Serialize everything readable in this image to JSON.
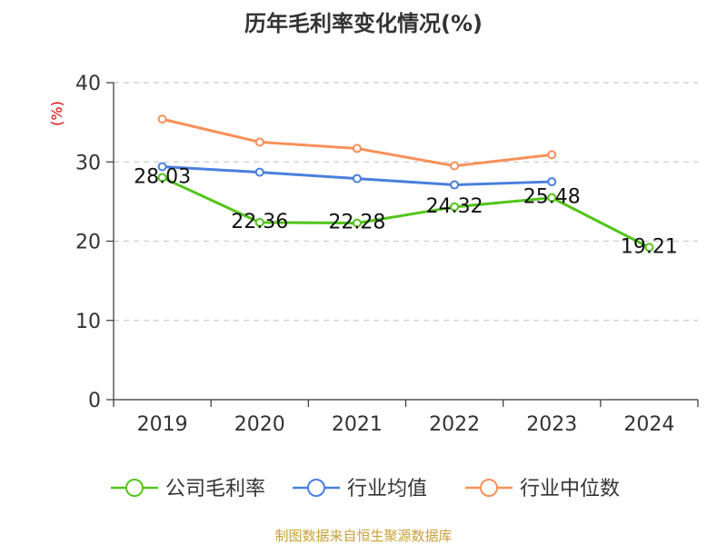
{
  "chart_data": {
    "type": "line",
    "title": "历年毛利率变化情况(%)",
    "ylabel": "(%)",
    "xlabel": "",
    "ylim": [
      0,
      40
    ],
    "yticks": [
      0,
      10,
      20,
      30,
      40
    ],
    "grid": true,
    "legend_position": "bottom",
    "categories": [
      "2019",
      "2020",
      "2021",
      "2022",
      "2023",
      "2024"
    ],
    "series": [
      {
        "name": "公司毛利率",
        "color": "#52c41a",
        "values": [
          28.03,
          22.36,
          22.28,
          24.32,
          25.48,
          19.21
        ],
        "labels": [
          "28.03",
          "22.36",
          "22.28",
          "24.32",
          "25.48",
          "19.21"
        ]
      },
      {
        "name": "行业均值",
        "color": "#4a7fdc",
        "values": [
          29.4,
          28.7,
          27.9,
          27.1,
          27.5,
          null
        ]
      },
      {
        "name": "行业中位数",
        "color": "#f79059",
        "values": [
          35.4,
          32.5,
          31.7,
          29.5,
          30.9,
          null
        ]
      }
    ],
    "source": "制图数据来自恒生聚源数据库"
  }
}
